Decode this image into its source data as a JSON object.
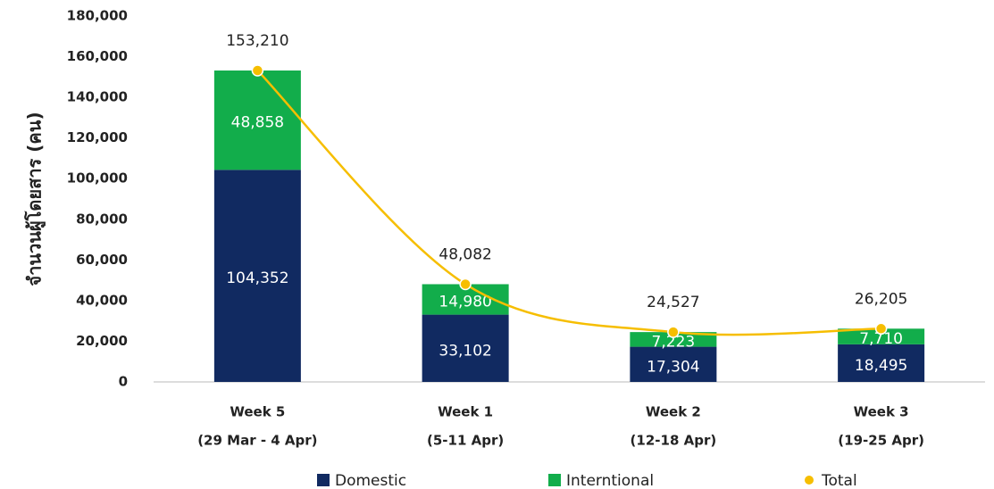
{
  "chart_data": {
    "type": "bar",
    "y_label": "จำนวนผู้โดยสาร (คน)",
    "categories": [
      [
        "Week 5",
        "(29 Mar - 4 Apr)"
      ],
      [
        "Week 1",
        "(5-11 Apr)"
      ],
      [
        "Week 2",
        "(12-18 Apr)"
      ],
      [
        "Week 3",
        "(19-25 Apr)"
      ]
    ],
    "series": [
      {
        "name": "Domestic",
        "type": "bar",
        "color": "#112a61",
        "values": [
          104352,
          33102,
          17304,
          18495
        ],
        "value_labels": [
          "104,352",
          "33,102",
          "17,304",
          "18,495"
        ]
      },
      {
        "name": "Interntional",
        "type": "bar",
        "color": "#12ad4b",
        "values": [
          48858,
          14980,
          7223,
          7710
        ],
        "value_labels": [
          "48,858",
          "14,980",
          "7,223",
          "7,710"
        ]
      },
      {
        "name": "Total",
        "type": "line",
        "color": "#f6be00",
        "values": [
          153210,
          48082,
          24527,
          26205
        ],
        "value_labels": [
          "153,210",
          "48,082",
          "24,527",
          "26,205"
        ]
      }
    ],
    "stacked": true,
    "ylim": [
      0,
      180000
    ],
    "yticks": [
      0,
      {
        "value": 20000,
        "label": "20,000"
      },
      {
        "value": 40000,
        "label": "40,000"
      },
      {
        "value": 60000,
        "label": "60,000"
      },
      {
        "value": 80000,
        "label": "80,000"
      },
      {
        "value": 100000,
        "label": "100,000"
      },
      {
        "value": 120000,
        "label": "120,000"
      },
      {
        "value": 140000,
        "label": "140,000"
      },
      {
        "value": 160000,
        "label": "160,000"
      },
      {
        "value": 180000,
        "label": "180,000"
      }
    ],
    "grid": false,
    "legend": "bottom"
  }
}
